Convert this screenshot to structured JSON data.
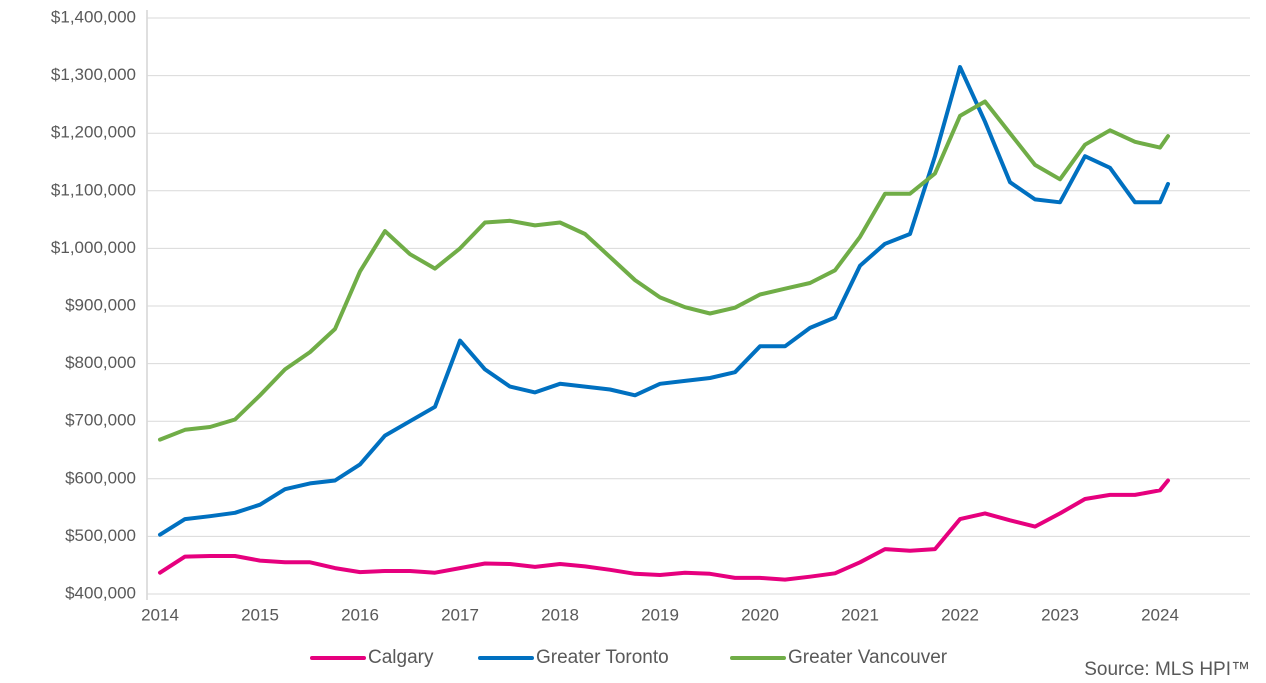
{
  "chart_data": {
    "type": "line",
    "source": "Source: MLS HPI™",
    "x": [
      2014,
      2014.25,
      2014.5,
      2014.75,
      2015,
      2015.25,
      2015.5,
      2015.75,
      2016,
      2016.25,
      2016.5,
      2016.75,
      2017,
      2017.25,
      2017.5,
      2017.75,
      2018,
      2018.25,
      2018.5,
      2018.75,
      2019,
      2019.25,
      2019.5,
      2019.75,
      2020,
      2020.25,
      2020.5,
      2020.75,
      2021,
      2021.25,
      2021.5,
      2021.75,
      2022,
      2022.25,
      2022.5,
      2022.75,
      2023,
      2023.25,
      2023.5,
      2023.75,
      2024,
      2024.08
    ],
    "series": [
      {
        "name": "Calgary",
        "color": "#e6007e",
        "values": [
          437000,
          465000,
          466000,
          466000,
          458000,
          455000,
          455000,
          445000,
          438000,
          440000,
          440000,
          437000,
          445000,
          453000,
          452000,
          447000,
          452000,
          448000,
          442000,
          435000,
          433000,
          437000,
          435000,
          428000,
          428000,
          425000,
          430000,
          436000,
          455000,
          478000,
          475000,
          478000,
          530000,
          540000,
          528000,
          517000,
          540000,
          565000,
          572000,
          572000,
          580000,
          597000
        ]
      },
      {
        "name": "Greater Toronto",
        "color": "#0070c0",
        "values": [
          503000,
          530000,
          535000,
          541000,
          555000,
          582000,
          592000,
          597000,
          625000,
          675000,
          700000,
          725000,
          840000,
          790000,
          760000,
          750000,
          765000,
          760000,
          755000,
          745000,
          765000,
          770000,
          775000,
          785000,
          830000,
          830000,
          862000,
          880000,
          970000,
          1008000,
          1025000,
          1160000,
          1315000,
          1220000,
          1115000,
          1085000,
          1080000,
          1160000,
          1140000,
          1080000,
          1080000,
          1112000
        ]
      },
      {
        "name": "Greater Vancouver",
        "color": "#70ad47",
        "values": [
          668000,
          685000,
          690000,
          703000,
          745000,
          790000,
          820000,
          860000,
          960000,
          1030000,
          990000,
          965000,
          1000000,
          1045000,
          1048000,
          1040000,
          1045000,
          1025000,
          985000,
          945000,
          915000,
          898000,
          887000,
          897000,
          920000,
          930000,
          940000,
          962000,
          1020000,
          1095000,
          1095000,
          1130000,
          1230000,
          1255000,
          1200000,
          1145000,
          1120000,
          1180000,
          1205000,
          1185000,
          1175000,
          1195000
        ]
      }
    ],
    "xlim": [
      2013.87,
      2024.9
    ],
    "xticks": [
      2014,
      2015,
      2016,
      2017,
      2018,
      2019,
      2020,
      2021,
      2022,
      2023,
      2024
    ],
    "ylim": [
      400000,
      1400000
    ],
    "yticks": [
      {
        "value": 400000,
        "label": "$400,000"
      },
      {
        "value": 500000,
        "label": "$500,000"
      },
      {
        "value": 600000,
        "label": "$600,000"
      },
      {
        "value": 700000,
        "label": "$700,000"
      },
      {
        "value": 800000,
        "label": "$800,000"
      },
      {
        "value": 900000,
        "label": "$900,000"
      },
      {
        "value": 1000000,
        "label": "$1,000,000"
      },
      {
        "value": 1100000,
        "label": "$1,100,000"
      },
      {
        "value": 1200000,
        "label": "$1,200,000"
      },
      {
        "value": 1300000,
        "label": "$1,300,000"
      },
      {
        "value": 1400000,
        "label": "$1,400,000"
      }
    ],
    "grid": true,
    "legend": "bottom"
  }
}
